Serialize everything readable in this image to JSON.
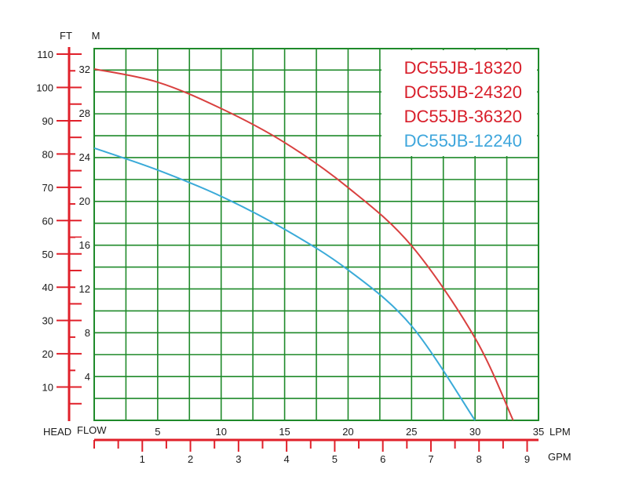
{
  "chart_data": {
    "type": "line",
    "title": "",
    "colors": {
      "grid": "#1f8a2a",
      "axis": "#e0202a",
      "red_curve": "#d9403f",
      "blue_curve": "#3aaad8",
      "red_legend": "#d81e2a",
      "blue_legend": "#3ea6dc"
    },
    "axes": {
      "head_ft": {
        "unit": "FT",
        "ticks": [
          10,
          20,
          30,
          40,
          50,
          60,
          70,
          80,
          90,
          100,
          110
        ],
        "labels": [
          "10",
          "20",
          "30",
          "40",
          "50",
          "60",
          "70",
          "80",
          "90",
          "100",
          "110"
        ],
        "range": [
          0,
          110
        ]
      },
      "head_m": {
        "unit": "M",
        "ticks": [
          4,
          8,
          12,
          16,
          20,
          24,
          28,
          32
        ],
        "labels": [
          "4",
          "8",
          "12",
          "16",
          "20",
          "24",
          "28",
          "32"
        ],
        "range": [
          0,
          33.5
        ]
      },
      "flow_lpm": {
        "unit": "LPM",
        "ticks": [
          5,
          10,
          15,
          20,
          25,
          30,
          35
        ],
        "labels": [
          "5",
          "10",
          "15",
          "20",
          "25",
          "30",
          "35"
        ],
        "range": [
          0,
          35
        ]
      },
      "flow_gpm": {
        "unit": "GPM",
        "ticks": [
          1,
          2,
          3,
          4,
          5,
          6,
          7,
          8,
          9
        ],
        "labels": [
          "1",
          "2",
          "3",
          "4",
          "5",
          "6",
          "7",
          "8",
          "9"
        ]
      },
      "head_caption": "HEAD",
      "flow_caption": "FLOW"
    },
    "grid": true,
    "legend_position": "top-right",
    "legend": [
      "DC55JB-18320",
      "DC55JB-24320",
      "DC55JB-36320",
      "DC55JB-12240"
    ],
    "series": [
      {
        "name": "DC55JB-18320 / DC55JB-24320 / DC55JB-36320",
        "color": "red",
        "x_lpm": [
          0,
          5,
          10,
          15,
          20,
          25,
          30,
          33
        ],
        "y_m": [
          32.0,
          30.8,
          28.4,
          25.3,
          21.2,
          15.9,
          7.5,
          0.0
        ]
      },
      {
        "name": "DC55JB-12240",
        "color": "blue",
        "x_lpm": [
          0,
          5,
          10,
          15,
          20,
          25,
          30
        ],
        "y_m": [
          24.8,
          22.8,
          20.4,
          17.4,
          13.7,
          8.6,
          0.0
        ]
      }
    ]
  }
}
